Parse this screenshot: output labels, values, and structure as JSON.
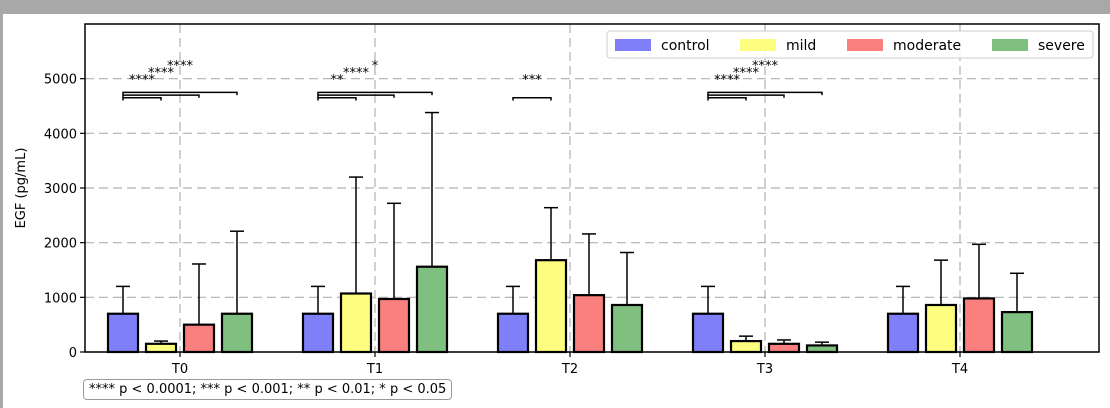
{
  "chart_data": {
    "type": "bar",
    "ylabel": "EGF (pg/mL)",
    "xlabel": "",
    "ylim": [
      0,
      6000
    ],
    "yticks": [
      0,
      1000,
      2000,
      3000,
      4000,
      5000
    ],
    "grid": true,
    "legend_position": "top-right",
    "categories": [
      "T0",
      "T1",
      "T2",
      "T3",
      "T4"
    ],
    "series": [
      {
        "name": "control",
        "color": "#7f7ff9",
        "values": [
          700,
          700,
          700,
          700,
          700
        ],
        "errors": [
          500,
          500,
          500,
          500,
          500
        ]
      },
      {
        "name": "mild",
        "color": "#fdfd7f",
        "values": [
          150,
          1070,
          1680,
          200,
          860
        ],
        "errors": [
          50,
          2130,
          960,
          90,
          820
        ]
      },
      {
        "name": "moderate",
        "color": "#fa7f7f",
        "values": [
          500,
          970,
          1040,
          150,
          980
        ],
        "errors": [
          1110,
          1750,
          1120,
          70,
          990
        ]
      },
      {
        "name": "severe",
        "color": "#7fbf7f",
        "values": [
          700,
          1560,
          860,
          120,
          730
        ],
        "errors": [
          1510,
          2820,
          960,
          60,
          710
        ]
      }
    ],
    "significance": [
      {
        "category": "T0",
        "pairs": [
          {
            "from": 0,
            "to": 1,
            "label": "****"
          },
          {
            "from": 0,
            "to": 2,
            "label": "****"
          },
          {
            "from": 0,
            "to": 3,
            "label": "****"
          }
        ]
      },
      {
        "category": "T1",
        "pairs": [
          {
            "from": 0,
            "to": 1,
            "label": "**"
          },
          {
            "from": 0,
            "to": 2,
            "label": "****"
          },
          {
            "from": 0,
            "to": 3,
            "label": "*"
          }
        ]
      },
      {
        "category": "T2",
        "pairs": [
          {
            "from": 0,
            "to": 1,
            "label": "***"
          }
        ]
      },
      {
        "category": "T3",
        "pairs": [
          {
            "from": 0,
            "to": 1,
            "label": "****"
          },
          {
            "from": 0,
            "to": 2,
            "label": "****"
          },
          {
            "from": 0,
            "to": 3,
            "label": "****"
          }
        ]
      }
    ],
    "footnote": "**** p < 0.0001; *** p < 0.001; ** p < 0.01; * p < 0.05"
  }
}
